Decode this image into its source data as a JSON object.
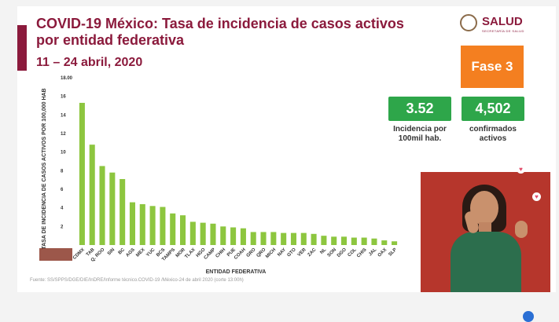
{
  "header": {
    "title": "COVID-19 México: Tasa de incidencia de casos activos por entidad federativa",
    "date_range": "11 – 24 abril, 2020",
    "logo_text": "SALUD",
    "logo_subtext": "SECRETARÍA DE SALUD"
  },
  "phase": {
    "label": "Fase 3"
  },
  "stats": {
    "incidence": {
      "value": "3.52",
      "label": "Incidencia por 100mil hab."
    },
    "confirmed": {
      "value": "4,502",
      "label": "confirmados activos"
    }
  },
  "colors": {
    "brand": "#8b1a3c",
    "bar": "#8dc63f",
    "phase": "#f47f20",
    "stat": "#2ea64a"
  },
  "source": "Fuente: SS/SPPS/DGE/DIE/InDRE/Informe técnico.COVID-19 /México-24 de abril 2020 (corte 13:00h)",
  "chart_data": {
    "type": "bar",
    "title": "",
    "xlabel": "ENTIDAD FEDERATIVA",
    "ylabel": "TASA DE INCIDENCIA DE CASOS ACTIVOS POR 100,000 HAB",
    "ylim": [
      0,
      18
    ],
    "yticks": [
      "",
      "2",
      "4",
      "6",
      "8",
      "10",
      "12",
      "14",
      "16",
      "18.00"
    ],
    "categories": [
      "CDMX",
      "TAB",
      "Q. ROO",
      "SIN",
      "BC",
      "AGS",
      "MEX",
      "YUC",
      "BCS",
      "TAMPS",
      "MOR",
      "TLAX",
      "HGO",
      "CAMP",
      "CHIH",
      "PUE",
      "COAH",
      "GRO",
      "QRO",
      "MICH",
      "NAY",
      "GTO",
      "VER",
      "ZAC",
      "NL",
      "SON",
      "DGO",
      "COL",
      "CHIS",
      "JAL",
      "OAX",
      "SLP"
    ],
    "values": [
      15.3,
      10.8,
      8.5,
      7.8,
      7.1,
      4.6,
      4.4,
      4.2,
      4.1,
      3.4,
      3.2,
      2.5,
      2.4,
      2.3,
      2.0,
      1.9,
      1.8,
      1.4,
      1.4,
      1.4,
      1.3,
      1.3,
      1.3,
      1.2,
      1.0,
      0.9,
      0.9,
      0.8,
      0.8,
      0.7,
      0.5,
      0.4
    ],
    "grid": false,
    "legend": "none"
  }
}
